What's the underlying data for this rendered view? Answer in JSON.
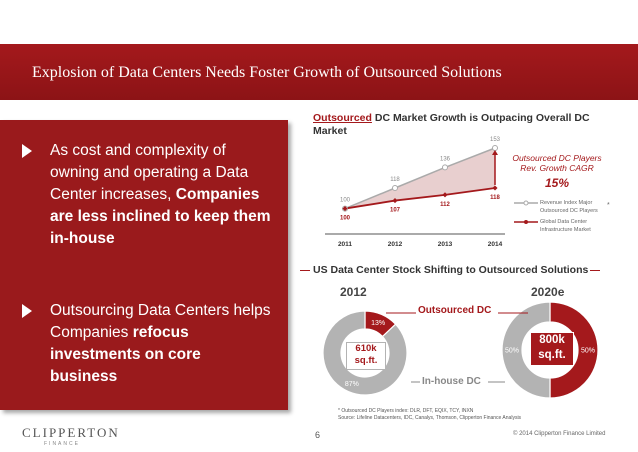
{
  "header": {
    "title": "Explosion of Data Centers Needs Foster Growth of Outsourced Solutions"
  },
  "bullets": [
    {
      "pre": "As cost and complexity of owning and operating a Data Center increases, ",
      "bold": "Companies are less inclined to keep them in-house",
      "post": ""
    },
    {
      "pre": "Outsourcing Data Centers helps Companies ",
      "bold": "refocus investments on core business",
      "post": ""
    }
  ],
  "chart_data": [
    {
      "type": "area",
      "title_prefix": "Outsourced",
      "title_rest": " DC Market Growth is Outpacing Overall DC Market",
      "categories": [
        "2011",
        "2012",
        "2013",
        "2014"
      ],
      "series": [
        {
          "name": "Revenue Index Major Outsourced DC Players",
          "values": [
            100,
            118,
            136,
            153
          ],
          "labels": [
            "100",
            "118",
            "136",
            "153"
          ],
          "color": "#aaaaaa"
        },
        {
          "name": "Global Data Center Infrastructure Market",
          "values": [
            100,
            107,
            112,
            118
          ],
          "labels": [
            "100",
            "107",
            "112",
            "118"
          ],
          "color": "#a4191c"
        }
      ],
      "ylim": [
        90,
        160
      ],
      "cagr_label": "Outsourced DC Players Rev. Growth CAGR",
      "cagr_value": "15%",
      "footnote_mark": "*"
    },
    {
      "type": "pie",
      "title": "US Data Center Stock Shifting to Outsourced Solutions",
      "charts": [
        {
          "year": "2012",
          "center": "610k sq.ft.",
          "slices": [
            {
              "name": "Outsourced DC",
              "value": 13,
              "label": "13%",
              "color": "#a4191c"
            },
            {
              "name": "In-house DC",
              "value": 87,
              "label": "87%",
              "color": "#b3b3b3"
            }
          ]
        },
        {
          "year": "2020e",
          "center": "800k sq.ft.",
          "slices": [
            {
              "name": "Outsourced DC",
              "value": 50,
              "label": "50%",
              "color": "#a4191c"
            },
            {
              "name": "In-house DC",
              "value": 50,
              "label": "50%",
              "color": "#b3b3b3"
            }
          ]
        }
      ],
      "annotations": {
        "outsourced": "Outsourced DC",
        "inhouse": "In-house DC"
      }
    }
  ],
  "footer": {
    "note_line1": "* Outsourced DC Players index: DLR, DFT, EQIX, TCY, INXN",
    "note_line2": "Source: Lifeline Datacenters, IDC, Canalys, Thomson, Clipperton Finance Analysis",
    "logo": "CLIPPERTON",
    "logo_sub": "FINANCE",
    "page": "6",
    "copyright": "© 2014 Clipperton Finance Limited"
  }
}
